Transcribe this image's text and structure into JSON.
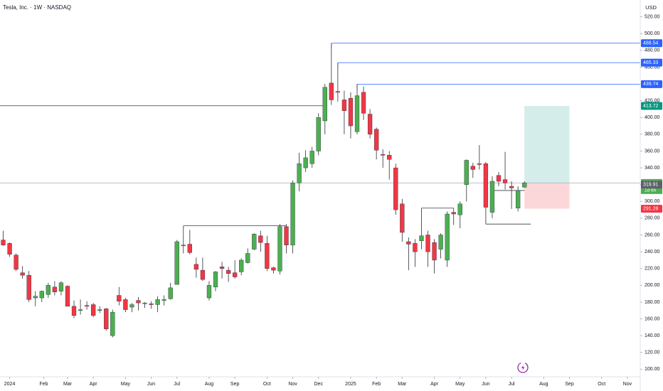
{
  "header": {
    "symbol": "Tesla, Inc. · 1W · NASDAQ",
    "currency": "USD"
  },
  "chart_data": {
    "type": "candlestick",
    "up_color": "#4caf50",
    "down_color": "#f23645",
    "grid": false,
    "xlim": [
      -0.5,
      99
    ],
    "ylim": [
      91,
      540
    ],
    "xticks": [
      {
        "value": 1,
        "label": "2024"
      },
      {
        "value": 6.3,
        "label": "Feb"
      },
      {
        "value": 10,
        "label": "Mar"
      },
      {
        "value": 14,
        "label": "Apr"
      },
      {
        "value": 19,
        "label": "May"
      },
      {
        "value": 23,
        "label": "Jun"
      },
      {
        "value": 27,
        "label": "Jul"
      },
      {
        "value": 32,
        "label": "Aug"
      },
      {
        "value": 36,
        "label": "Sep"
      },
      {
        "value": 41,
        "label": "Oct"
      },
      {
        "value": 45,
        "label": "Nov"
      },
      {
        "value": 49,
        "label": "Dec"
      },
      {
        "value": 54,
        "label": "2025"
      },
      {
        "value": 58,
        "label": "Feb"
      },
      {
        "value": 62,
        "label": "Mar"
      },
      {
        "value": 67,
        "label": "Apr"
      },
      {
        "value": 71,
        "label": "May"
      },
      {
        "value": 75,
        "label": "Jun"
      },
      {
        "value": 79,
        "label": "Jul"
      },
      {
        "value": 84,
        "label": "Aug"
      },
      {
        "value": 88,
        "label": "Sep"
      },
      {
        "value": 93,
        "label": "Oct"
      },
      {
        "value": 97,
        "label": "Nov"
      }
    ],
    "yticks": [
      {
        "value": 100,
        "label": "100.00"
      },
      {
        "value": 120,
        "label": "120.00"
      },
      {
        "value": 140,
        "label": "140.00"
      },
      {
        "value": 160,
        "label": "160.00"
      },
      {
        "value": 180,
        "label": "180.00"
      },
      {
        "value": 200,
        "label": "200.00"
      },
      {
        "value": 220,
        "label": "220.00"
      },
      {
        "value": 240,
        "label": "240.00"
      },
      {
        "value": 260,
        "label": "260.00"
      },
      {
        "value": 280,
        "label": "280.00"
      },
      {
        "value": 300,
        "label": "300.00"
      },
      {
        "value": 320,
        "label": "320.00"
      },
      {
        "value": 340,
        "label": "340.00"
      },
      {
        "value": 360,
        "label": "360.00"
      },
      {
        "value": 380,
        "label": "380.00"
      },
      {
        "value": 400,
        "label": "400.00"
      },
      {
        "value": 420,
        "label": "420.00"
      },
      {
        "value": 440,
        "label": "440.00"
      },
      {
        "value": 460,
        "label": "460.00"
      },
      {
        "value": 480,
        "label": "480.00"
      },
      {
        "value": 500,
        "label": "500.00"
      },
      {
        "value": 520,
        "label": "520.00"
      }
    ],
    "open": [
      254,
      250,
      236,
      215,
      212,
      185,
      185,
      189,
      198,
      193,
      199,
      175,
      170,
      176,
      177,
      170,
      172,
      140,
      188,
      183,
      174,
      182,
      178,
      178,
      177,
      182,
      184,
      201,
      247,
      249,
      225,
      218,
      185,
      198,
      222,
      218,
      215,
      216,
      227,
      243,
      259,
      250,
      221,
      217,
      270,
      248,
      322,
      340,
      345,
      360,
      396,
      441,
      431,
      421,
      423,
      383,
      430,
      404,
      386,
      356,
      355,
      340,
      297,
      252,
      250,
      253,
      260,
      251,
      243,
      230,
      287,
      284,
      320,
      342,
      345,
      345,
      287,
      331,
      326,
      318,
      292,
      317
    ],
    "high": [
      265,
      251,
      238,
      223,
      217,
      193,
      194,
      203,
      205,
      205,
      200,
      182,
      183,
      181,
      179,
      175,
      173,
      171,
      198,
      185,
      179,
      186,
      180,
      181,
      187,
      188,
      203,
      254,
      271,
      266,
      233,
      233,
      205,
      217,
      228,
      222,
      230,
      232,
      244,
      262,
      265,
      259,
      222,
      273,
      273,
      325,
      358,
      361,
      365,
      405,
      440,
      488.54,
      465.33,
      432,
      430,
      439.74,
      437,
      410,
      388,
      362,
      360,
      345,
      303,
      257,
      255,
      292,
      265,
      255,
      262,
      288,
      292,
      300,
      350,
      346,
      367,
      347,
      330,
      335,
      359,
      324,
      318,
      324
    ],
    "low": [
      247,
      234,
      217,
      208,
      180,
      175,
      180,
      185,
      188,
      188,
      175,
      161,
      165,
      171,
      162,
      167,
      146,
      138,
      176,
      168,
      168,
      170,
      173,
      172,
      168,
      176,
      183,
      201,
      238,
      237,
      209,
      205,
      182,
      193,
      208,
      204,
      208,
      212,
      226,
      242,
      240,
      217,
      214,
      213,
      238,
      238,
      312,
      335,
      340,
      355,
      380,
      415,
      419,
      380,
      375,
      380,
      397,
      375,
      350,
      340,
      326,
      284,
      252,
      218,
      222,
      243,
      222,
      214,
      232,
      222,
      272,
      268,
      300,
      328,
      338,
      273,
      280,
      318,
      314,
      291,
      288,
      316
    ],
    "close": [
      248,
      237,
      219,
      212,
      183,
      187,
      193,
      200,
      192,
      203,
      175,
      164,
      171,
      175,
      164,
      171,
      148,
      168,
      181,
      171,
      177,
      179,
      179,
      177,
      183,
      183,
      197,
      252,
      248,
      239,
      219,
      207,
      200,
      216,
      220,
      214,
      210,
      230,
      238,
      261,
      251,
      220,
      218,
      270,
      248,
      322,
      345,
      352,
      360,
      400,
      436,
      421,
      430,
      408,
      390,
      426,
      405,
      380,
      361,
      355,
      350,
      290,
      263,
      249,
      240,
      259,
      240,
      230,
      260,
      285,
      285,
      297,
      349,
      338,
      344,
      293,
      324,
      324,
      322,
      316,
      313,
      322
    ],
    "lines": [
      {
        "price": 414,
        "from": -1,
        "to": 50
      },
      {
        "price": 271,
        "from": 28,
        "to": 44
      },
      {
        "price": 292,
        "from": 65,
        "to": 70
      },
      {
        "price": 273,
        "from": 75,
        "to": 82
      },
      {
        "price": 313,
        "from": 76,
        "to": 81
      }
    ],
    "levels": [
      {
        "value": 488.54,
        "from": 51
      },
      {
        "value": 465.33,
        "from": 52
      },
      {
        "value": 439.74,
        "from": 55
      }
    ],
    "position": {
      "entry": {
        "value": 322,
        "label": "322.00"
      },
      "target": 413.72,
      "stop": 291.28,
      "from": 81,
      "to": 88
    },
    "countdown": "1d 6h",
    "marker_price": 319.91
  }
}
